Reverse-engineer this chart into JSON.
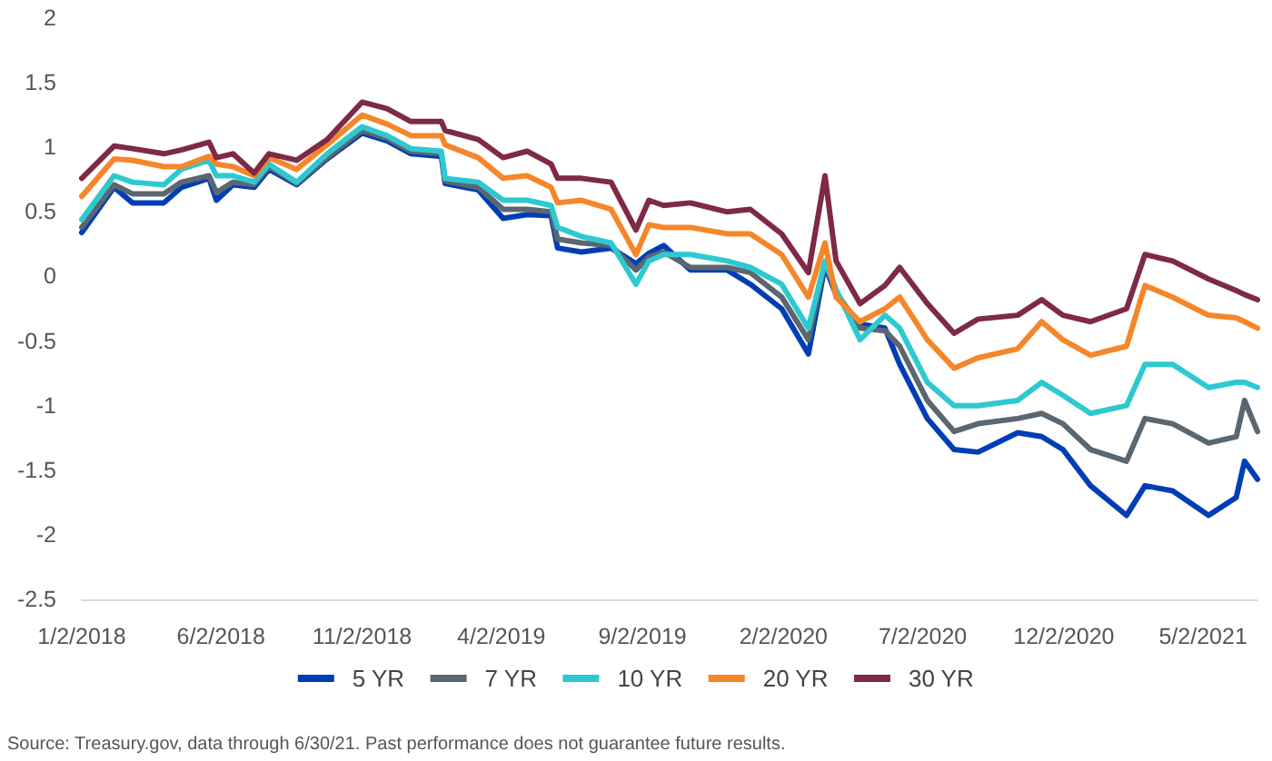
{
  "chart_data": {
    "type": "line",
    "x": [
      "2018-01-02",
      "2018-02-06",
      "2018-02-26",
      "2018-04-01",
      "2018-04-20",
      "2018-05-20",
      "2018-05-28",
      "2018-06-15",
      "2018-07-08",
      "2018-07-24",
      "2018-08-23",
      "2018-09-25",
      "2018-11-02",
      "2018-11-29",
      "2018-12-25",
      "2019-01-27",
      "2019-01-31",
      "2019-03-08",
      "2019-04-04",
      "2019-04-30",
      "2019-05-26",
      "2019-06-02",
      "2019-06-28",
      "2019-07-30",
      "2019-08-26",
      "2019-09-09",
      "2019-09-25",
      "2019-10-24",
      "2019-12-03",
      "2019-12-28",
      "2020-01-31",
      "2020-02-29",
      "2020-03-18",
      "2020-03-30",
      "2020-04-25",
      "2020-05-22",
      "2020-06-07",
      "2020-07-07",
      "2020-08-05",
      "2020-08-31",
      "2020-10-13",
      "2020-11-08",
      "2020-12-01",
      "2020-12-31",
      "2021-02-08",
      "2021-02-28",
      "2021-03-30",
      "2021-05-08",
      "2021-06-07",
      "2021-06-16",
      "2021-06-30"
    ],
    "series": [
      {
        "name": "5 YR",
        "color": "#003eb5",
        "values": [
          0.34,
          0.69,
          0.57,
          0.57,
          0.69,
          0.76,
          0.59,
          0.71,
          0.69,
          0.83,
          0.71,
          0.91,
          1.11,
          1.05,
          0.95,
          0.93,
          0.72,
          0.67,
          0.45,
          0.48,
          0.47,
          0.22,
          0.19,
          0.22,
          0.1,
          0.18,
          0.24,
          0.05,
          0.05,
          -0.06,
          -0.25,
          -0.6,
          0.08,
          -0.14,
          -0.37,
          -0.4,
          -0.68,
          -1.1,
          -1.34,
          -1.36,
          -1.21,
          -1.24,
          -1.34,
          -1.62,
          -1.85,
          -1.62,
          -1.66,
          -1.85,
          -1.71,
          -1.43,
          -1.57
        ]
      },
      {
        "name": "7 YR",
        "color": "#5a6670",
        "values": [
          0.38,
          0.71,
          0.64,
          0.64,
          0.73,
          0.78,
          0.65,
          0.73,
          0.71,
          0.85,
          0.72,
          0.92,
          1.13,
          1.07,
          0.97,
          0.95,
          0.74,
          0.69,
          0.52,
          0.52,
          0.5,
          0.29,
          0.26,
          0.24,
          0.05,
          0.15,
          0.19,
          0.07,
          0.07,
          0.03,
          -0.16,
          -0.49,
          0.1,
          -0.12,
          -0.4,
          -0.42,
          -0.54,
          -0.96,
          -1.2,
          -1.14,
          -1.1,
          -1.06,
          -1.14,
          -1.34,
          -1.43,
          -1.1,
          -1.14,
          -1.29,
          -1.24,
          -0.96,
          -1.2
        ]
      },
      {
        "name": "10 YR",
        "color": "#2ec9d0",
        "values": [
          0.44,
          0.78,
          0.73,
          0.71,
          0.83,
          0.9,
          0.78,
          0.78,
          0.73,
          0.87,
          0.73,
          0.95,
          1.16,
          1.09,
          0.99,
          0.97,
          0.76,
          0.73,
          0.59,
          0.59,
          0.55,
          0.38,
          0.31,
          0.26,
          -0.06,
          0.12,
          0.17,
          0.17,
          0.12,
          0.07,
          -0.06,
          -0.4,
          0.12,
          -0.1,
          -0.49,
          -0.3,
          -0.4,
          -0.82,
          -1.0,
          -1.0,
          -0.96,
          -0.82,
          -0.92,
          -1.06,
          -1.0,
          -0.68,
          -0.68,
          -0.86,
          -0.82,
          -0.82,
          -0.86
        ]
      },
      {
        "name": "20 YR",
        "color": "#f5862a",
        "values": [
          0.62,
          0.91,
          0.9,
          0.85,
          0.85,
          0.93,
          0.87,
          0.85,
          0.78,
          0.92,
          0.83,
          1.02,
          1.25,
          1.18,
          1.09,
          1.09,
          1.02,
          0.92,
          0.76,
          0.78,
          0.69,
          0.57,
          0.59,
          0.52,
          0.17,
          0.4,
          0.38,
          0.38,
          0.33,
          0.33,
          0.17,
          -0.16,
          0.26,
          -0.16,
          -0.35,
          -0.25,
          -0.16,
          -0.49,
          -0.71,
          -0.63,
          -0.56,
          -0.35,
          -0.49,
          -0.61,
          -0.54,
          -0.07,
          -0.16,
          -0.3,
          -0.32,
          -0.35,
          -0.4
        ]
      },
      {
        "name": "30 YR",
        "color": "#7e2a47",
        "values": [
          0.76,
          1.01,
          0.99,
          0.95,
          0.98,
          1.04,
          0.92,
          0.95,
          0.8,
          0.95,
          0.9,
          1.06,
          1.35,
          1.3,
          1.2,
          1.2,
          1.13,
          1.06,
          0.92,
          0.97,
          0.87,
          0.76,
          0.76,
          0.73,
          0.36,
          0.59,
          0.55,
          0.57,
          0.5,
          0.52,
          0.33,
          0.03,
          0.78,
          0.12,
          -0.21,
          -0.07,
          0.07,
          -0.21,
          -0.44,
          -0.33,
          -0.3,
          -0.18,
          -0.3,
          -0.35,
          -0.25,
          0.17,
          0.12,
          -0.02,
          -0.11,
          -0.14,
          -0.18
        ]
      }
    ],
    "xticks": [
      {
        "value": "2018-01-02",
        "label": "1/2/2018"
      },
      {
        "value": "2018-06-02",
        "label": "6/2/2018"
      },
      {
        "value": "2018-11-02",
        "label": "11/2/2018"
      },
      {
        "value": "2019-04-02",
        "label": "4/2/2019"
      },
      {
        "value": "2019-09-02",
        "label": "9/2/2019"
      },
      {
        "value": "2020-02-02",
        "label": "2/2/2020"
      },
      {
        "value": "2020-07-02",
        "label": "7/2/2020"
      },
      {
        "value": "2020-12-02",
        "label": "12/2/2020"
      },
      {
        "value": "2021-05-02",
        "label": "5/2/2021"
      }
    ],
    "xlim": [
      "2018-01-02",
      "2021-06-30"
    ],
    "ylim": [
      -2.5,
      2
    ],
    "yticks": [
      -2.5,
      -2,
      -1.5,
      -1,
      -0.5,
      0,
      0.5,
      1,
      1.5,
      2
    ],
    "grid": false,
    "legend": "bottom",
    "marker": "none",
    "annotations": [
      "Source: Treasury.gov, data through 6/30/21. Past performance does not guarantee future results."
    ]
  }
}
